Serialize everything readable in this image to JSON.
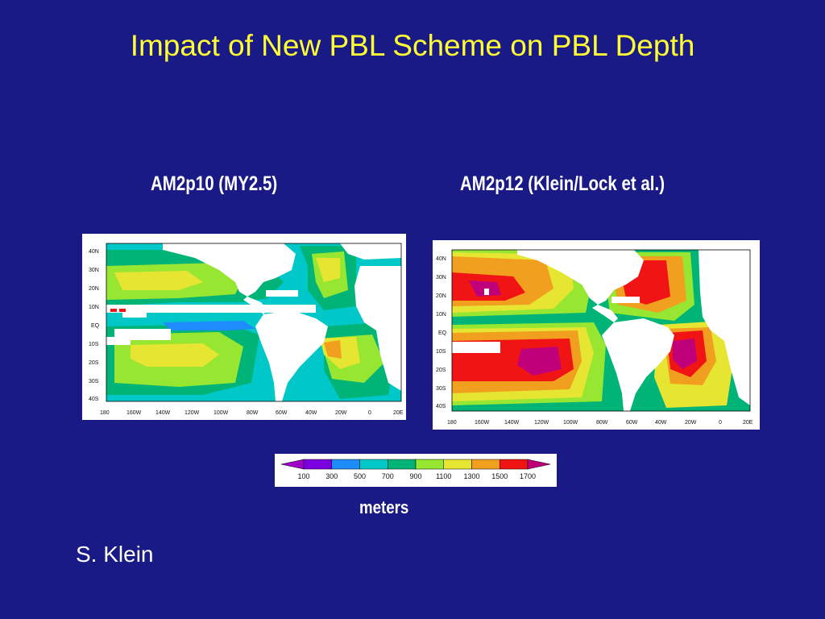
{
  "slide": {
    "title": "Impact of New PBL Scheme on PBL Depth",
    "author": "S. Klein"
  },
  "panels": [
    {
      "title": "AM2p10 (MY2.5)",
      "lat_labels": [
        "40N",
        "30N",
        "20N",
        "10N",
        "EQ",
        "10S",
        "20S",
        "30S",
        "40S"
      ],
      "lon_labels": [
        "180",
        "160W",
        "140W",
        "120W",
        "100W",
        "80W",
        "60W",
        "40W",
        "20W",
        "0",
        "20E"
      ]
    },
    {
      "title": "AM2p12 (Klein/Lock et al.)",
      "lat_labels": [
        "40N",
        "30N",
        "20N",
        "10N",
        "EQ",
        "10S",
        "20S",
        "30S",
        "40S"
      ],
      "lon_labels": [
        "180",
        "160W",
        "140W",
        "120W",
        "100W",
        "80W",
        "60W",
        "40W",
        "20W",
        "0",
        "20E"
      ]
    }
  ],
  "colorbar": {
    "levels": [
      "100",
      "300",
      "500",
      "700",
      "900",
      "1100",
      "1300",
      "1500",
      "1700"
    ],
    "colors": [
      "#a000c8",
      "#7b00e0",
      "#1e8cff",
      "#00c8c8",
      "#00b478",
      "#96e632",
      "#e6e632",
      "#f0a01e",
      "#f01414",
      "#c0007a"
    ],
    "units": "meters"
  }
}
